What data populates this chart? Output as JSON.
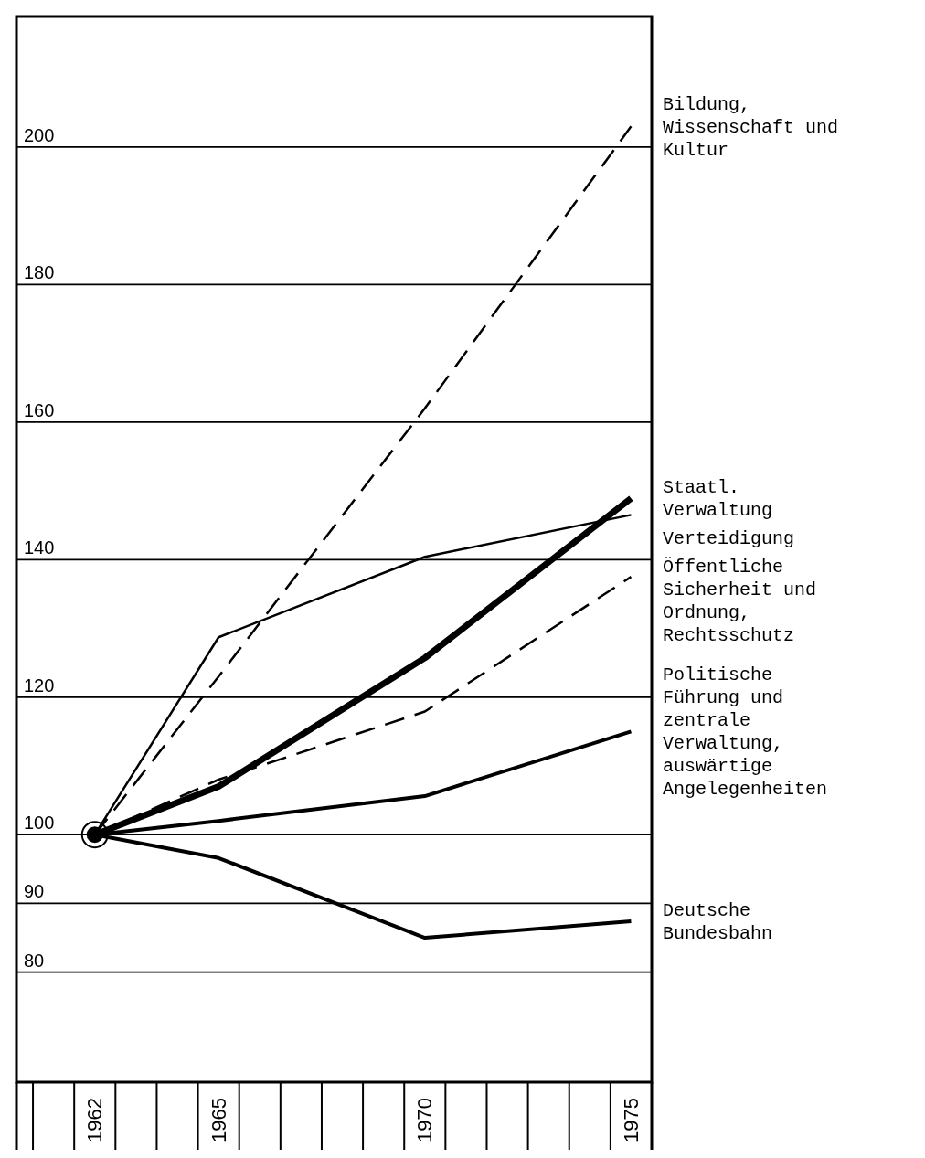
{
  "chart_data": {
    "type": "line",
    "x": [
      1962,
      1965,
      1970,
      1975
    ],
    "series": [
      {
        "name": "Bildung, Wissenschaft und Kultur",
        "color": "#000000",
        "line_style": "dashed",
        "values": [
          100,
          123,
          162,
          203
        ]
      },
      {
        "name": "Staatl. Verwaltung",
        "color": "#000000",
        "line_style": "solid",
        "values": [
          100,
          107,
          125.7,
          148.9
        ]
      },
      {
        "name": "Verteidigung",
        "color": "#000000",
        "line_style": "solid",
        "values": [
          100,
          128.7,
          140.4,
          146.5
        ]
      },
      {
        "name": "Öffentliche Sicherheit und Ordnung, Rechtsschutz",
        "color": "#000000",
        "line_style": "dashed",
        "values": [
          100,
          108,
          117.9,
          137.5
        ]
      },
      {
        "name": "Politische Führung und zentrale Verwaltung, auswärtige Angelegenheiten",
        "color": "#000000",
        "line_style": "solid",
        "values": [
          100,
          102,
          105.6,
          115
        ]
      },
      {
        "name": "Deutsche Bundesbahn",
        "color": "#000000",
        "line_style": "solid",
        "values": [
          100,
          96.6,
          85,
          87.4
        ]
      }
    ],
    "xlim": [
      1960.1,
      1975.5
    ],
    "xticks": [
      1962,
      1965,
      1970,
      1975
    ],
    "ylim": [
      64,
      219
    ],
    "yticks": [
      80,
      90,
      100,
      120,
      140,
      160,
      180,
      200
    ],
    "grid": "y",
    "legend": false
  }
}
